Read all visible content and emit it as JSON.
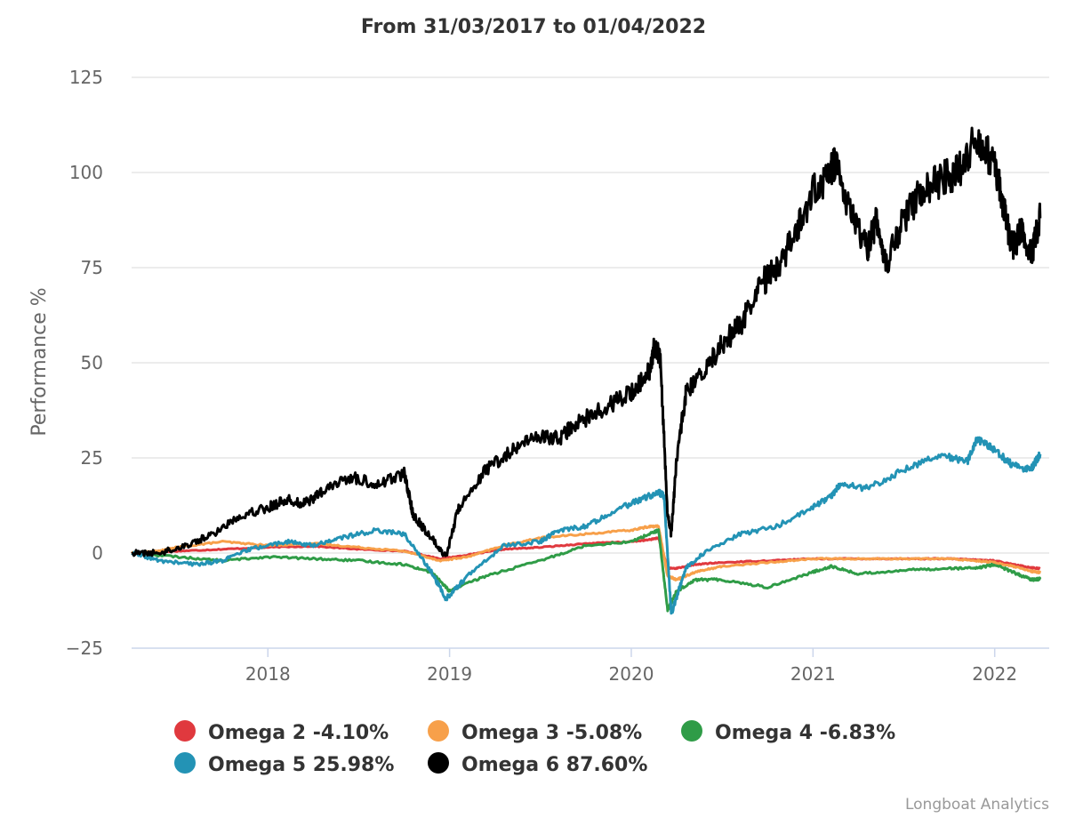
{
  "chart_data": {
    "type": "line",
    "title": "From 31/03/2017 to 01/04/2022",
    "xlabel": "",
    "ylabel": "Performance %",
    "ylim": [
      -25,
      125
    ],
    "yticks": [
      125,
      100,
      75,
      50,
      25,
      0,
      -25
    ],
    "xlim": [
      2017.25,
      2022.3
    ],
    "xticks": [
      {
        "value": 2018,
        "label": "2018"
      },
      {
        "value": 2019,
        "label": "2019"
      },
      {
        "value": 2020,
        "label": "2020"
      },
      {
        "value": 2021,
        "label": "2021"
      },
      {
        "value": 2022,
        "label": "2022"
      }
    ],
    "grid": true,
    "legend_position": "bottom",
    "credit": "Longboat Analytics",
    "series": [
      {
        "name": "Omega 2 -4.10%",
        "color": "#e0393e",
        "x": [
          2017.25,
          2017.5,
          2017.75,
          2018.0,
          2018.25,
          2018.5,
          2018.75,
          2018.95,
          2019.1,
          2019.3,
          2019.5,
          2019.75,
          2020.0,
          2020.1,
          2020.15,
          2020.2,
          2020.25,
          2020.35,
          2020.5,
          2020.75,
          2021.0,
          2021.25,
          2021.5,
          2021.75,
          2021.9,
          2022.0,
          2022.1,
          2022.2,
          2022.25
        ],
        "values": [
          0,
          0.5,
          1,
          1.5,
          1.8,
          1,
          0.5,
          -1.5,
          -0.5,
          1,
          1.5,
          2.5,
          3,
          3.5,
          4,
          -4,
          -4,
          -3,
          -2.5,
          -2,
          -1.5,
          -1.5,
          -1.5,
          -1.5,
          -1.8,
          -2,
          -3,
          -3.8,
          -4.1
        ]
      },
      {
        "name": "Omega 3 -5.08%",
        "color": "#f7a04a",
        "x": [
          2017.25,
          2017.4,
          2017.5,
          2017.75,
          2018.0,
          2018.25,
          2018.5,
          2018.75,
          2018.95,
          2019.1,
          2019.3,
          2019.5,
          2019.75,
          2020.0,
          2020.1,
          2020.15,
          2020.2,
          2020.25,
          2020.35,
          2020.5,
          2020.75,
          2021.0,
          2021.25,
          2021.5,
          2021.75,
          2021.9,
          2022.0,
          2022.1,
          2022.2,
          2022.25
        ],
        "values": [
          0,
          0.5,
          1.5,
          3,
          2,
          2.5,
          1.5,
          0.5,
          -2,
          -1,
          2,
          4,
          5,
          6,
          7,
          7,
          -6,
          -7,
          -5,
          -3.5,
          -2.5,
          -1.5,
          -1.5,
          -1.5,
          -1.5,
          -2,
          -2.5,
          -3.5,
          -4.8,
          -5.1
        ]
      },
      {
        "name": "Omega 4 -6.83%",
        "color": "#2f9c47",
        "x": [
          2017.25,
          2017.5,
          2017.75,
          2018.0,
          2018.25,
          2018.5,
          2018.75,
          2018.9,
          2019.0,
          2019.2,
          2019.5,
          2019.75,
          2020.0,
          2020.1,
          2020.15,
          2020.2,
          2020.25,
          2020.35,
          2020.5,
          2020.75,
          2021.0,
          2021.1,
          2021.25,
          2021.5,
          2021.75,
          2021.9,
          2022.0,
          2022.1,
          2022.2,
          2022.25
        ],
        "values": [
          0,
          -1,
          -2,
          -1,
          -1.5,
          -2,
          -3,
          -5,
          -10,
          -6,
          -2,
          2,
          3,
          5,
          6,
          -15,
          -10,
          -7,
          -7,
          -9,
          -5,
          -3.5,
          -5.5,
          -4.5,
          -4,
          -4,
          -3,
          -5,
          -7,
          -6.8
        ]
      },
      {
        "name": "Omega 5 25.98%",
        "color": "#2393b5",
        "x": [
          2017.25,
          2017.4,
          2017.6,
          2017.75,
          2017.9,
          2018.1,
          2018.25,
          2018.4,
          2018.6,
          2018.75,
          2018.9,
          2018.98,
          2019.1,
          2019.3,
          2019.5,
          2019.6,
          2019.75,
          2019.9,
          2020.05,
          2020.15,
          2020.18,
          2020.22,
          2020.3,
          2020.4,
          2020.6,
          2020.8,
          2021.0,
          2021.1,
          2021.15,
          2021.3,
          2021.5,
          2021.7,
          2021.85,
          2021.9,
          2022.0,
          2022.1,
          2022.2,
          2022.25
        ],
        "values": [
          0,
          -2,
          -3,
          -2,
          1,
          3,
          2,
          4,
          6,
          5,
          -5,
          -12,
          -6,
          2,
          3,
          6,
          7,
          11,
          14,
          16,
          15,
          -16,
          -4,
          0,
          5,
          7,
          12,
          15,
          18,
          17,
          22,
          26,
          24,
          30,
          27,
          23,
          22,
          26
        ]
      },
      {
        "name": "Omega 6 87.60%",
        "color": "#000000",
        "x": [
          2017.25,
          2017.4,
          2017.55,
          2017.7,
          2017.85,
          2018.0,
          2018.1,
          2018.2,
          2018.3,
          2018.45,
          2018.6,
          2018.75,
          2018.8,
          2018.9,
          2018.98,
          2019.05,
          2019.2,
          2019.35,
          2019.5,
          2019.6,
          2019.7,
          2019.85,
          2020.0,
          2020.1,
          2020.13,
          2020.16,
          2020.2,
          2020.22,
          2020.25,
          2020.3,
          2020.4,
          2020.5,
          2020.6,
          2020.7,
          2020.8,
          2020.9,
          2021.0,
          2021.1,
          2021.12,
          2021.2,
          2021.3,
          2021.35,
          2021.4,
          2021.5,
          2021.6,
          2021.7,
          2021.8,
          2021.9,
          2022.0,
          2022.05,
          2022.1,
          2022.15,
          2022.2,
          2022.25
        ],
        "values": [
          0,
          0,
          2,
          5,
          10,
          12,
          14,
          13,
          16,
          20,
          18,
          21,
          10,
          4,
          -1,
          12,
          22,
          27,
          31,
          30,
          34,
          38,
          42,
          48,
          55,
          50,
          10,
          5,
          25,
          42,
          48,
          55,
          60,
          70,
          75,
          83,
          95,
          100,
          103,
          90,
          80,
          88,
          76,
          88,
          95,
          98,
          100,
          110,
          102,
          90,
          80,
          85,
          78,
          88
        ]
      }
    ]
  }
}
